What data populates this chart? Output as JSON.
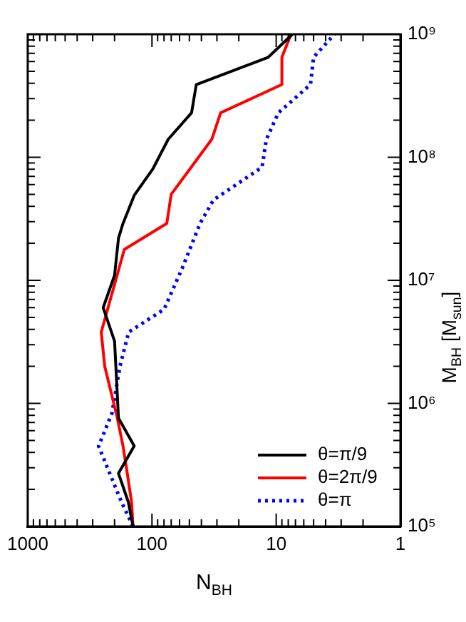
{
  "chart_data": {
    "type": "line",
    "xlabel": "N$_{BH}$",
    "ylabel": "M$_{BH}$ [M$_{sun}$]",
    "log": "xy",
    "xlim": [
      1000,
      1
    ],
    "xticks": [
      1000,
      100,
      10,
      1
    ],
    "ylim": [
      100000,
      1000000000
    ],
    "yticks": [
      {
        "value": 100000,
        "label": "10⁵"
      },
      {
        "value": 1000000,
        "label": "10⁶"
      },
      {
        "value": 10000000,
        "label": "10⁷"
      },
      {
        "value": 100000000,
        "label": "10⁸"
      },
      {
        "value": 1000000000,
        "label": "10⁹"
      }
    ],
    "grid": false,
    "legend": "bottom right",
    "marker": "none",
    "series": [
      {
        "name": "θ=π/9",
        "color": "#000000",
        "line_style": "solid",
        "x": [
          142,
          155,
          186,
          139,
          186,
          200,
          247,
          200,
          186,
          171,
          139,
          98,
          74,
          48,
          44,
          11.6,
          7.4
        ],
        "values": [
          100000,
          158000,
          270000,
          450000,
          760000,
          3200000,
          6000000,
          11000000,
          22000000,
          29000000,
          49000000,
          81000000,
          140000000,
          230000000,
          390000000,
          650000000,
          1000000000
        ]
      },
      {
        "name": "θ=2π/9",
        "color": "#ff0000",
        "line_style": "solid",
        "x": [
          142,
          146,
          158,
          171,
          190,
          240,
          256,
          167,
          76,
          70,
          33,
          28,
          9,
          9,
          7.6
        ],
        "values": [
          100000,
          158000,
          270000,
          450000,
          760000,
          2000000,
          3800000,
          17800000,
          29000000,
          50000000,
          140000000,
          230000000,
          390000000,
          650000000,
          1000000000
        ]
      },
      {
        "name": "θ=π",
        "color": "#0000ff",
        "line_style": "dotted",
        "x": [
          142,
          176,
          269,
          210,
          181,
          154,
          80,
          57,
          41,
          32,
          13,
          12,
          9.6,
          5.3,
          5,
          3.4
        ],
        "values": [
          100000,
          158000,
          450000,
          830000,
          2000000,
          3800000,
          5800000,
          12600000,
          29000000,
          45000000,
          83000000,
          140000000,
          230000000,
          390000000,
          650000000,
          1000000000
        ]
      }
    ]
  }
}
